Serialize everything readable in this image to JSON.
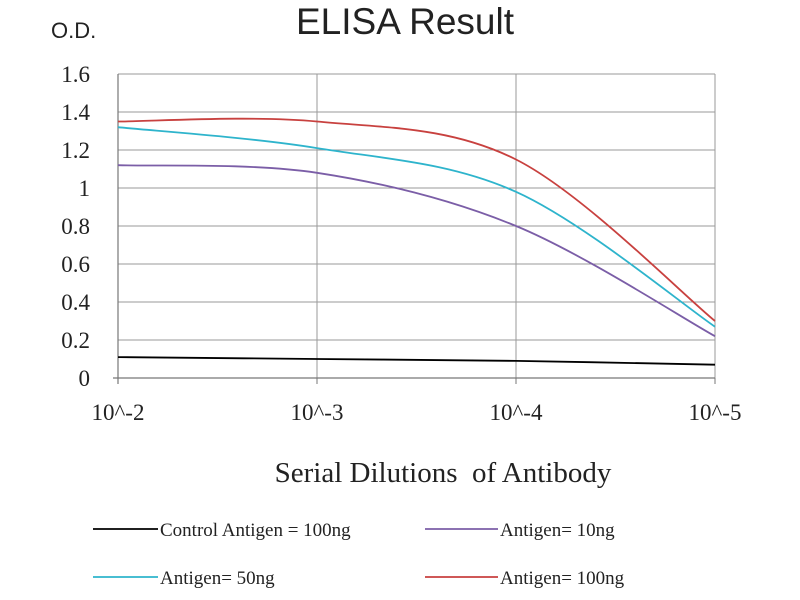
{
  "chart_data": {
    "type": "line",
    "title": "ELISA Result",
    "ylabel": "O.D.",
    "xlabel": "Serial Dilutions  of Antibody",
    "x_ticks": [
      "10^-2",
      "10^-3",
      "10^-4",
      "10^-5"
    ],
    "y_ticks": [
      "0",
      "0.2",
      "0.4",
      "0.6",
      "0.8",
      "1",
      "1.2",
      "1.4",
      "1.6"
    ],
    "ylim": [
      0,
      1.6
    ],
    "x_scale": "log",
    "grid": true,
    "legend_position": "bottom",
    "series": [
      {
        "name": "Control Antigen = 100ng",
        "color": "#000000",
        "x": [
          "10^-2",
          "10^-3",
          "10^-4",
          "10^-5"
        ],
        "values": [
          0.11,
          0.1,
          0.09,
          0.07
        ]
      },
      {
        "name": "Antigen= 10ng",
        "color": "#7b5ea7",
        "x": [
          "10^-2",
          "10^-3",
          "10^-4",
          "10^-5"
        ],
        "values": [
          1.12,
          1.08,
          0.8,
          0.22
        ]
      },
      {
        "name": "Antigen= 50ng",
        "color": "#2eb4cc",
        "x": [
          "10^-2",
          "10^-3",
          "10^-4",
          "10^-5"
        ],
        "values": [
          1.32,
          1.21,
          0.98,
          0.27
        ]
      },
      {
        "name": "Antigen= 100ng",
        "color": "#c8413f",
        "x": [
          "10^-2",
          "10^-3",
          "10^-4",
          "10^-5"
        ],
        "values": [
          1.35,
          1.35,
          1.15,
          0.3
        ]
      }
    ]
  }
}
